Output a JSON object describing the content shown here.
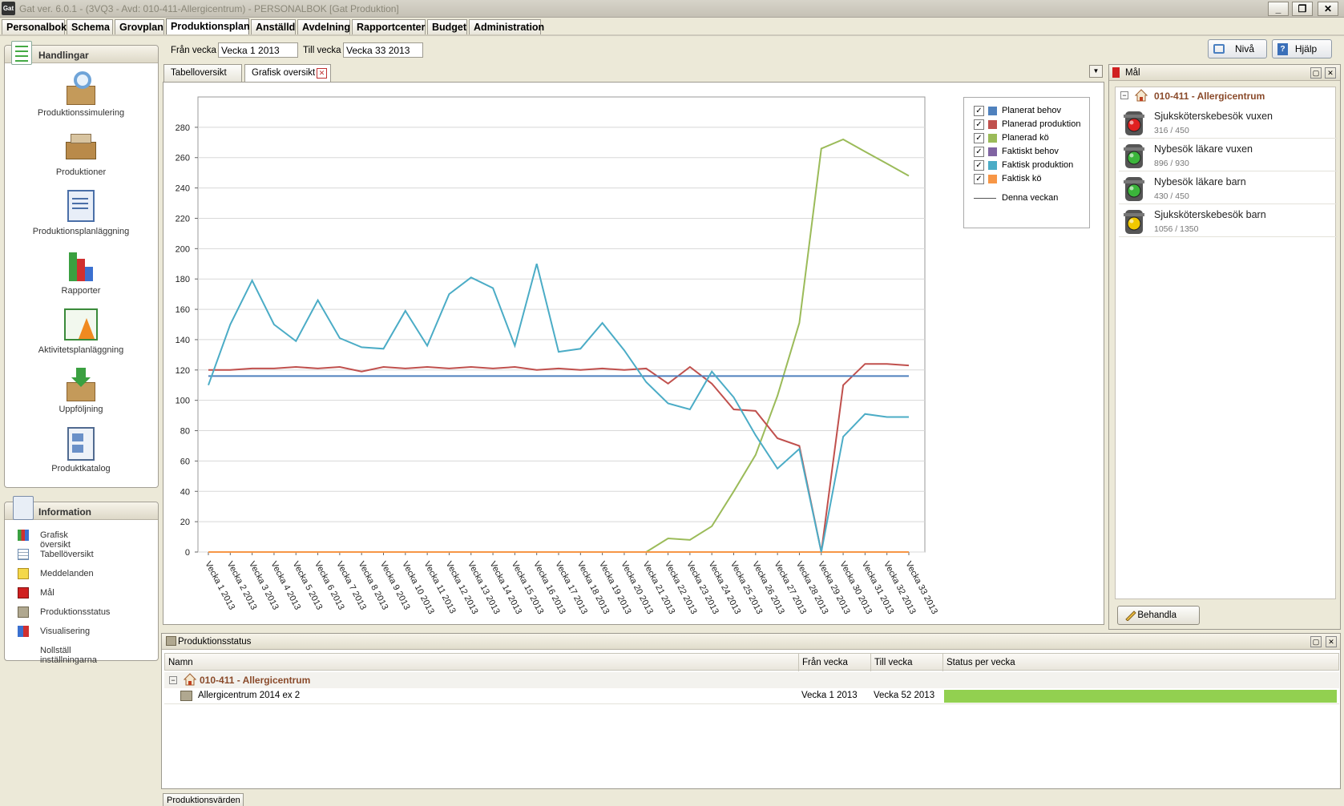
{
  "window": {
    "title": "Gat ver. 6.0.1 - (3VQ3 - Avd: 010-411-Allergicentrum) - PERSONALBOK [Gat Produktion]",
    "icon_label": "Gat",
    "min": "_",
    "restore": "❐",
    "close": "✕"
  },
  "menu": [
    "Personalbok",
    "Schema",
    "Grovplan",
    "Produktionsplan",
    "Anställd",
    "Avdelning",
    "Rapportcenter",
    "Budget",
    "Administration"
  ],
  "active_menu": "Produktionsplan",
  "weeks": {
    "from_label": "Från vecka",
    "from_value": "Vecka 1 2013",
    "to_label": "Till vecka",
    "to_value": "Vecka 33 2013"
  },
  "toolbar": {
    "niva": "Nivå",
    "hjalp": "Hjälp"
  },
  "handlingar": {
    "title": "Handlingar",
    "items": [
      "Produktionssimulering",
      "Produktioner",
      "Produktionsplanläggning",
      "Rapporter",
      "Aktivitetsplanläggning",
      "Uppföljning",
      "Produktkatalog"
    ]
  },
  "information": {
    "title": "Information",
    "items": [
      "Grafisk översikt",
      "Tabellöversikt",
      "Meddelanden",
      "Mål",
      "Produktionsstatus",
      "Visualisering",
      "Nollställ inställningarna"
    ]
  },
  "tabs": [
    "Tabelloversikt",
    "Grafisk oversikt"
  ],
  "tab_close": "✕",
  "chart_data": {
    "type": "line",
    "categories": [
      "Vecka 1 2013",
      "Vecka 2 2013",
      "Vecka 3 2013",
      "Vecka 4 2013",
      "Vecka 5 2013",
      "Vecka 6 2013",
      "Vecka 7 2013",
      "Vecka 8 2013",
      "Vecka 9 2013",
      "Vecka 10 2013",
      "Vecka 11 2013",
      "Vecka 12 2013",
      "Vecka 13 2013",
      "Vecka 14 2013",
      "Vecka 15 2013",
      "Vecka 16 2013",
      "Vecka 17 2013",
      "Vecka 18 2013",
      "Vecka 19 2013",
      "Vecka 20 2013",
      "Vecka 21 2013",
      "Vecka 22 2013",
      "Vecka 23 2013",
      "Vecka 24 2013",
      "Vecka 25 2013",
      "Vecka 26 2013",
      "Vecka 27 2013",
      "Vecka 28 2013",
      "Vecka 29 2013",
      "Vecka 30 2013",
      "Vecka 31 2013",
      "Vecka 32 2013",
      "Vecka 33 2013"
    ],
    "ylim": [
      0,
      300
    ],
    "yticks": [
      0,
      20,
      40,
      60,
      80,
      100,
      120,
      140,
      160,
      180,
      200,
      220,
      240,
      260,
      280
    ],
    "grid": true,
    "legend_position": "top-right",
    "series": [
      {
        "name": "Planerat behov",
        "color": "#4f81bd",
        "values": [
          116,
          116,
          116,
          116,
          116,
          116,
          116,
          116,
          116,
          116,
          116,
          116,
          116,
          116,
          116,
          116,
          116,
          116,
          116,
          116,
          116,
          116,
          116,
          116,
          116,
          116,
          116,
          116,
          116,
          116,
          116,
          116,
          116
        ]
      },
      {
        "name": "Planerad produktion",
        "color": "#c0504d",
        "values": [
          120,
          120,
          121,
          121,
          122,
          121,
          122,
          119,
          122,
          121,
          122,
          121,
          122,
          121,
          122,
          120,
          121,
          120,
          121,
          120,
          121,
          111,
          122,
          111,
          94,
          93,
          75,
          70,
          0,
          110,
          124,
          124,
          123
        ]
      },
      {
        "name": "Planerad kö",
        "color": "#9bbb59",
        "values": [
          0,
          0,
          0,
          0,
          0,
          0,
          0,
          0,
          0,
          0,
          0,
          0,
          0,
          0,
          0,
          0,
          0,
          0,
          0,
          0,
          0,
          9,
          8,
          17,
          40,
          64,
          103,
          151,
          266,
          272,
          264,
          256,
          248
        ]
      },
      {
        "name": "Faktiskt behov",
        "color": "#8064a2",
        "values": [
          0,
          0,
          0,
          0,
          0,
          0,
          0,
          0,
          0,
          0,
          0,
          0,
          0,
          0,
          0,
          0,
          0,
          0,
          0,
          0,
          0,
          0,
          0,
          0,
          0,
          0,
          0,
          0,
          0,
          0,
          0,
          0,
          0
        ]
      },
      {
        "name": "Faktisk produktion",
        "color": "#4bacc6",
        "values": [
          110,
          150,
          179,
          150,
          139,
          166,
          141,
          135,
          134,
          159,
          136,
          170,
          181,
          174,
          136,
          190,
          132,
          134,
          151,
          133,
          112,
          98,
          94,
          119,
          102,
          77,
          55,
          68,
          0,
          76,
          91,
          89,
          89
        ]
      },
      {
        "name": "Faktisk kö",
        "color": "#f79646",
        "values": [
          0,
          0,
          0,
          0,
          0,
          0,
          0,
          0,
          0,
          0,
          0,
          0,
          0,
          0,
          0,
          0,
          0,
          0,
          0,
          0,
          0,
          0,
          0,
          0,
          0,
          0,
          0,
          0,
          0,
          0,
          0,
          0,
          0
        ]
      }
    ],
    "extra_legend": "Denna veckan"
  },
  "mal": {
    "title": "Mål",
    "group": "010-411 - Allergicentrum",
    "goals": [
      {
        "name": "Sjuksköterskebesök vuxen",
        "value": "316 / 450",
        "status": "red"
      },
      {
        "name": "Nybesök läkare vuxen",
        "value": "896 / 930",
        "status": "green"
      },
      {
        "name": "Nybesök läkare barn",
        "value": "430 / 450",
        "status": "green"
      },
      {
        "name": "Sjuksköterskebesök barn",
        "value": "1056 / 1350",
        "status": "yellow"
      }
    ],
    "button": "Behandla"
  },
  "prodstatus": {
    "title": "Produktionsstatus",
    "columns": [
      "Namn",
      "Från vecka",
      "Till vecka",
      "Status per vecka"
    ],
    "group": "010-411 - Allergicentrum",
    "row": {
      "name": "Allergicentrum 2014 ex 2",
      "from": "Vecka 1 2013",
      "to": "Vecka 52 2013",
      "status_fraction": 1.0,
      "status_color": "#92d050"
    }
  },
  "bottom_tab": "Produktionsvärden",
  "colors": {
    "red": "#e02020",
    "green": "#3bb53b",
    "yellow": "#f0c800"
  }
}
